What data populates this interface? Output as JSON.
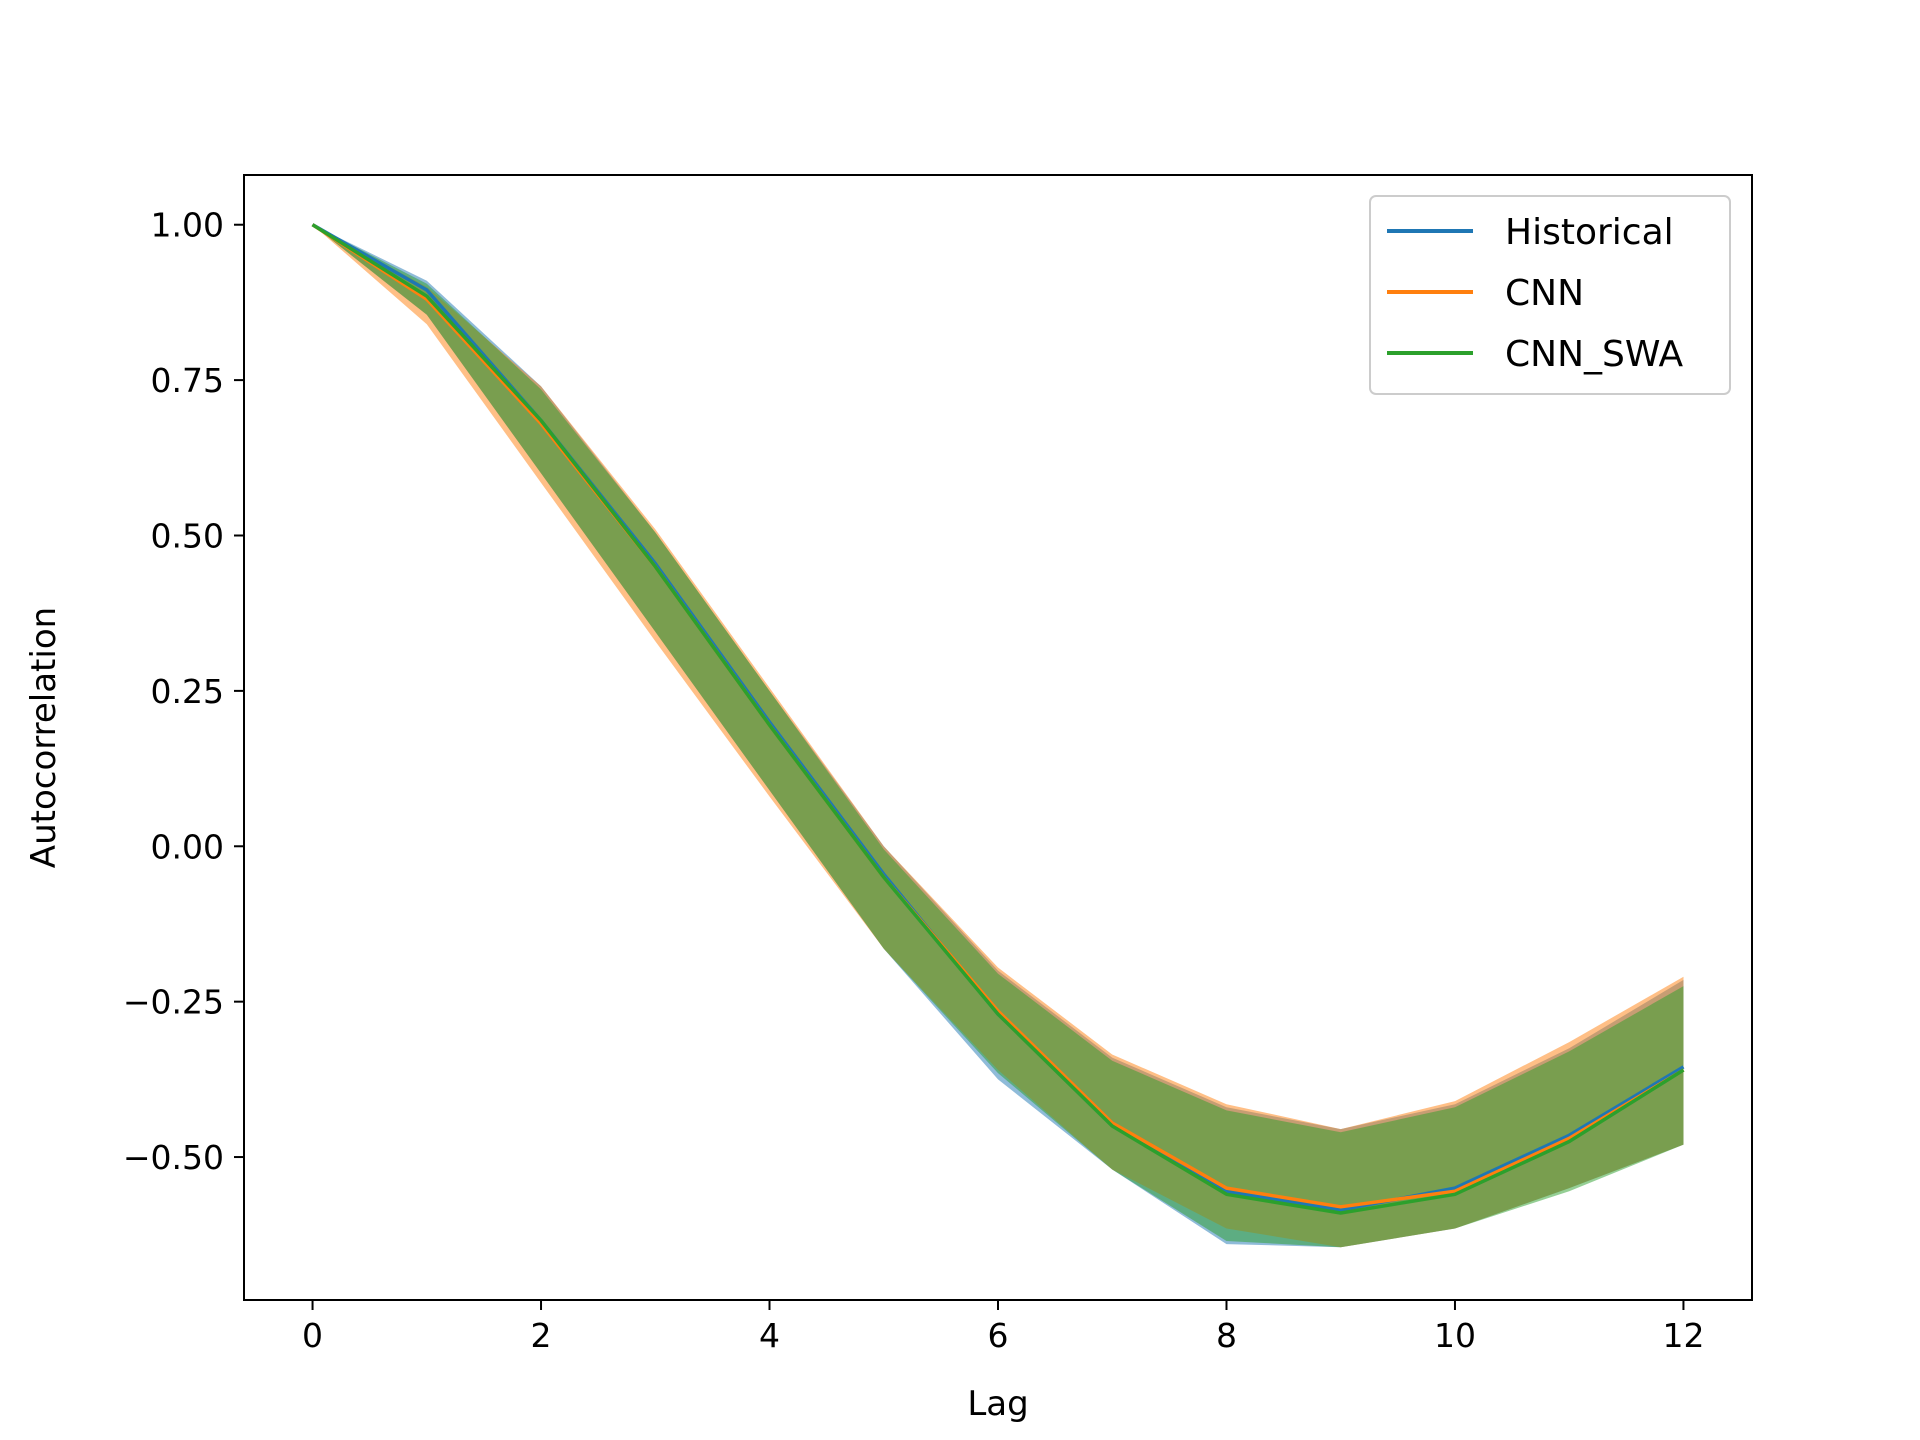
{
  "chart_data": {
    "type": "line",
    "xlabel": "Lag",
    "ylabel": "Autocorrelation",
    "xlim": [
      -0.6,
      12.6
    ],
    "ylim": [
      -0.73,
      1.08
    ],
    "xticks": [
      0,
      2,
      4,
      6,
      8,
      10,
      12
    ],
    "xtick_labels": [
      "0",
      "2",
      "4",
      "6",
      "8",
      "10",
      "12"
    ],
    "yticks": [
      1.0,
      0.75,
      0.5,
      0.25,
      0.0,
      -0.25,
      -0.5
    ],
    "ytick_labels": [
      "1.00",
      "0.75",
      "0.50",
      "0.25",
      "0.00",
      "−0.25",
      "−0.50"
    ],
    "grid": false,
    "legend_position": "top-right",
    "x": [
      0,
      1,
      2,
      3,
      4,
      5,
      6,
      7,
      8,
      9,
      10,
      11,
      12
    ],
    "series": [
      {
        "name": "Historical",
        "color": "#1f77b4",
        "values": [
          1.0,
          0.895,
          0.685,
          0.455,
          0.2,
          -0.045,
          -0.27,
          -0.445,
          -0.555,
          -0.585,
          -0.55,
          -0.465,
          -0.355
        ],
        "band_lower": [
          1.0,
          0.855,
          0.6,
          0.345,
          0.09,
          -0.165,
          -0.375,
          -0.52,
          -0.64,
          -0.645,
          -0.615,
          -0.55,
          -0.48
        ],
        "band_upper": [
          1.0,
          0.91,
          0.74,
          0.505,
          0.25,
          0.0,
          -0.2,
          -0.34,
          -0.42,
          -0.455,
          -0.415,
          -0.325,
          -0.215
        ]
      },
      {
        "name": "CNN",
        "color": "#ff7f0e",
        "values": [
          1.0,
          0.88,
          0.68,
          0.45,
          0.195,
          -0.05,
          -0.265,
          -0.445,
          -0.55,
          -0.58,
          -0.555,
          -0.47,
          -0.36
        ],
        "band_lower": [
          1.0,
          0.84,
          0.585,
          0.33,
          0.08,
          -0.165,
          -0.36,
          -0.52,
          -0.615,
          -0.645,
          -0.615,
          -0.55,
          -0.48
        ],
        "band_upper": [
          1.0,
          0.9,
          0.74,
          0.51,
          0.255,
          0.0,
          -0.195,
          -0.335,
          -0.415,
          -0.455,
          -0.41,
          -0.315,
          -0.21
        ]
      },
      {
        "name": "CNN_SWA",
        "color": "#2ca02c",
        "values": [
          1.0,
          0.885,
          0.685,
          0.45,
          0.195,
          -0.05,
          -0.27,
          -0.45,
          -0.56,
          -0.59,
          -0.56,
          -0.475,
          -0.36
        ],
        "band_lower": [
          1.0,
          0.855,
          0.6,
          0.345,
          0.09,
          -0.165,
          -0.365,
          -0.52,
          -0.635,
          -0.645,
          -0.615,
          -0.555,
          -0.48
        ],
        "band_upper": [
          1.0,
          0.905,
          0.735,
          0.505,
          0.25,
          -0.005,
          -0.205,
          -0.345,
          -0.425,
          -0.46,
          -0.42,
          -0.33,
          -0.225
        ]
      }
    ]
  }
}
